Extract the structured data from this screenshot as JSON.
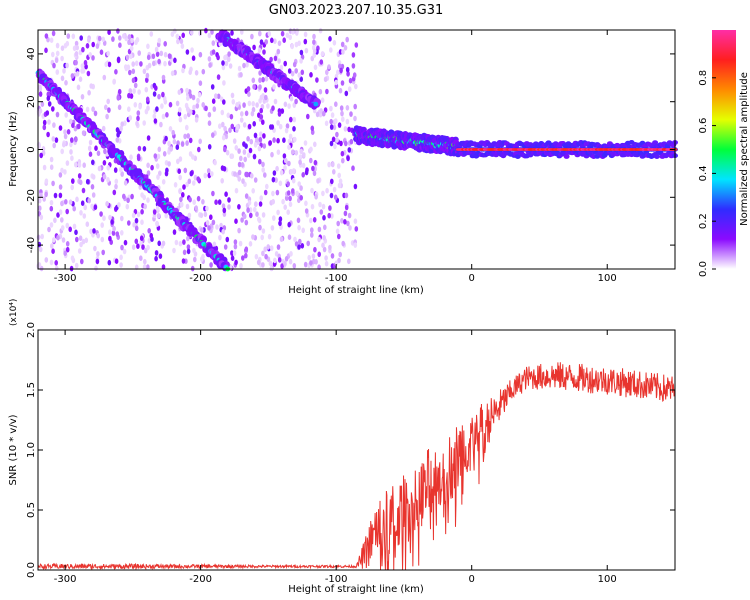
{
  "title": "GN03.2023.207.10.35.G31",
  "colors": {
    "snr_line": "#e8342e",
    "colormap": [
      "#ffffff",
      "#8b0aff",
      "#2f2cff",
      "#00e5ff",
      "#00ff3a",
      "#e5ff00",
      "#ff8a00",
      "#ff1f1f",
      "#ff2ea6"
    ]
  },
  "chart_data": [
    {
      "type": "heatmap",
      "xlabel": "Height of straight line (km)",
      "ylabel": "Frequency (Hz)",
      "xlim": [
        -320,
        150
      ],
      "ylim": [
        -50,
        50
      ],
      "xticks": [
        -300,
        -200,
        -100,
        0,
        100
      ],
      "yticks": [
        -40,
        -20,
        0,
        20,
        40
      ],
      "colorbar": {
        "label": "Normalized spectral amplitude",
        "range": [
          0,
          1
        ],
        "ticks": [
          0.0,
          0.2,
          0.4,
          0.6,
          0.8
        ]
      },
      "features": [
        {
          "kind": "diagonal_track",
          "x": [
            -320,
            -180
          ],
          "y": [
            32,
            -50
          ],
          "peak_amplitude": 0.45
        },
        {
          "kind": "diagonal_track",
          "x": [
            -185,
            -115
          ],
          "y": [
            48,
            19
          ],
          "peak_amplitude": 0.4
        },
        {
          "kind": "band_converging",
          "x": [
            -85,
            -10
          ],
          "y": [
            6,
            1
          ],
          "peak_amplitude": 0.5
        },
        {
          "kind": "horizontal_line",
          "x": [
            -10,
            150
          ],
          "y": [
            0,
            0
          ],
          "peak_amplitude": 1.0
        },
        {
          "kind": "noise_region",
          "x": [
            -320,
            -85
          ],
          "y": [
            -50,
            50
          ],
          "peak_amplitude": 0.15
        }
      ]
    },
    {
      "type": "line",
      "xlabel": "Height of straight line (km)",
      "ylabel": "SNR (10 * v/v)",
      "yscale_label": "(x10⁴)",
      "xlim": [
        -320,
        150
      ],
      "ylim": [
        0,
        2.0
      ],
      "xticks": [
        -300,
        -200,
        -100,
        0,
        100
      ],
      "yticks": [
        0.0,
        0.5,
        1.0,
        1.5,
        2.0
      ],
      "series": [
        {
          "x": [
            -320,
            -250,
            -150,
            -85,
            -78,
            -70,
            -60,
            -50,
            -40,
            -30,
            -20,
            -10,
            0,
            10,
            20,
            30,
            40,
            60,
            80,
            100,
            120,
            150
          ],
          "y": [
            0.03,
            0.03,
            0.03,
            0.03,
            0.15,
            0.35,
            0.4,
            0.5,
            0.6,
            0.75,
            0.8,
            0.95,
            1.1,
            1.2,
            1.35,
            1.5,
            1.6,
            1.62,
            1.6,
            1.58,
            1.55,
            1.5
          ],
          "noise": [
            0.02,
            0.02,
            0.01,
            0.01,
            0.15,
            0.25,
            0.3,
            0.3,
            0.3,
            0.3,
            0.3,
            0.3,
            0.25,
            0.2,
            0.15,
            0.1,
            0.1,
            0.12,
            0.12,
            0.12,
            0.12,
            0.12
          ]
        }
      ]
    }
  ]
}
